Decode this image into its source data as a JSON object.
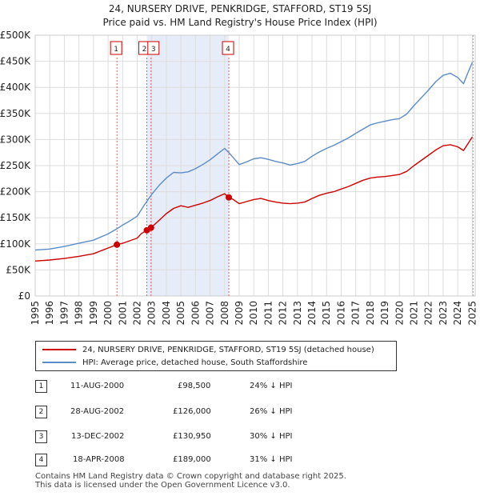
{
  "chart_data": {
    "type": "line",
    "title": "24, NURSERY DRIVE, PENKRIDGE, STAFFORD, ST19 5SJ",
    "subtitle": "Price paid vs. HM Land Registry's House Price Index (HPI)",
    "xlim": [
      1995,
      2025.2
    ],
    "ylim": [
      0,
      500000
    ],
    "x_ticks": [
      "1995",
      "1996",
      "1997",
      "1998",
      "1999",
      "2000",
      "2001",
      "2002",
      "2003",
      "2004",
      "2005",
      "2006",
      "2007",
      "2008",
      "2009",
      "2010",
      "2011",
      "2012",
      "2013",
      "2014",
      "2015",
      "2016",
      "2017",
      "2018",
      "2019",
      "2020",
      "2021",
      "2022",
      "2023",
      "2024",
      "2025"
    ],
    "y_ticks": [
      {
        "value": 0,
        "label": "£0"
      },
      {
        "value": 50000,
        "label": "£50K"
      },
      {
        "value": 100000,
        "label": "£100K"
      },
      {
        "value": 150000,
        "label": "£150K"
      },
      {
        "value": 200000,
        "label": "£200K"
      },
      {
        "value": 250000,
        "label": "£250K"
      },
      {
        "value": 300000,
        "label": "£300K"
      },
      {
        "value": 350000,
        "label": "£350K"
      },
      {
        "value": 400000,
        "label": "£400K"
      },
      {
        "value": 450000,
        "label": "£450K"
      },
      {
        "value": 500000,
        "label": "£500K"
      }
    ],
    "shaded_region": [
      2002.66,
      2008.29
    ],
    "series": [
      {
        "name": "24, NURSERY DRIVE, PENKRIDGE, STAFFORD, ST19 5SJ (detached house)",
        "color": "#cc0000",
        "points": [
          [
            1995.0,
            67000
          ],
          [
            1996.0,
            69000
          ],
          [
            1997.0,
            72000
          ],
          [
            1998.0,
            76000
          ],
          [
            1999.0,
            81000
          ],
          [
            2000.0,
            92000
          ],
          [
            2000.61,
            98500
          ],
          [
            2001.0,
            101000
          ],
          [
            2001.5,
            106000
          ],
          [
            2002.0,
            111000
          ],
          [
            2002.3,
            120000
          ],
          [
            2002.66,
            126000
          ],
          [
            2002.95,
            130950
          ],
          [
            2003.5,
            145000
          ],
          [
            2004.0,
            158000
          ],
          [
            2004.5,
            168000
          ],
          [
            2005.0,
            173000
          ],
          [
            2005.5,
            170000
          ],
          [
            2006.0,
            174000
          ],
          [
            2006.5,
            178000
          ],
          [
            2007.0,
            183000
          ],
          [
            2007.5,
            190000
          ],
          [
            2008.0,
            196000
          ],
          [
            2008.29,
            189000
          ],
          [
            2008.6,
            185000
          ],
          [
            2009.0,
            177000
          ],
          [
            2009.5,
            181000
          ],
          [
            2010.0,
            185000
          ],
          [
            2010.5,
            187000
          ],
          [
            2011.0,
            183000
          ],
          [
            2011.5,
            180000
          ],
          [
            2012.0,
            178000
          ],
          [
            2012.5,
            177000
          ],
          [
            2013.0,
            178000
          ],
          [
            2013.5,
            180000
          ],
          [
            2014.0,
            187000
          ],
          [
            2014.5,
            193000
          ],
          [
            2015.0,
            197000
          ],
          [
            2015.5,
            200000
          ],
          [
            2016.0,
            205000
          ],
          [
            2016.5,
            210000
          ],
          [
            2017.0,
            216000
          ],
          [
            2017.5,
            222000
          ],
          [
            2018.0,
            226000
          ],
          [
            2018.5,
            228000
          ],
          [
            2019.0,
            229000
          ],
          [
            2019.5,
            231000
          ],
          [
            2020.0,
            233000
          ],
          [
            2020.5,
            239000
          ],
          [
            2021.0,
            250000
          ],
          [
            2021.5,
            260000
          ],
          [
            2022.0,
            270000
          ],
          [
            2022.5,
            280000
          ],
          [
            2023.0,
            288000
          ],
          [
            2023.5,
            290000
          ],
          [
            2024.0,
            286000
          ],
          [
            2024.4,
            279000
          ],
          [
            2024.7,
            292000
          ],
          [
            2025.0,
            305000
          ]
        ]
      },
      {
        "name": "HPI: Average price, detached house, South Staffordshire",
        "color": "#5b8cc8",
        "points": [
          [
            1995.0,
            88000
          ],
          [
            1996.0,
            90000
          ],
          [
            1997.0,
            95000
          ],
          [
            1998.0,
            101000
          ],
          [
            1999.0,
            107000
          ],
          [
            2000.0,
            119000
          ],
          [
            2000.61,
            129000
          ],
          [
            2001.0,
            136000
          ],
          [
            2001.5,
            144000
          ],
          [
            2002.0,
            153000
          ],
          [
            2002.5,
            175000
          ],
          [
            2003.0,
            195000
          ],
          [
            2003.5,
            212000
          ],
          [
            2004.0,
            226000
          ],
          [
            2004.5,
            237000
          ],
          [
            2005.0,
            236000
          ],
          [
            2005.5,
            238000
          ],
          [
            2006.0,
            244000
          ],
          [
            2006.5,
            252000
          ],
          [
            2007.0,
            261000
          ],
          [
            2007.5,
            272000
          ],
          [
            2008.0,
            283000
          ],
          [
            2008.29,
            275000
          ],
          [
            2008.6,
            265000
          ],
          [
            2009.0,
            252000
          ],
          [
            2009.5,
            257000
          ],
          [
            2010.0,
            263000
          ],
          [
            2010.5,
            265000
          ],
          [
            2011.0,
            262000
          ],
          [
            2011.5,
            258000
          ],
          [
            2012.0,
            255000
          ],
          [
            2012.5,
            251000
          ],
          [
            2013.0,
            254000
          ],
          [
            2013.5,
            258000
          ],
          [
            2014.0,
            268000
          ],
          [
            2014.5,
            276000
          ],
          [
            2015.0,
            283000
          ],
          [
            2015.5,
            289000
          ],
          [
            2016.0,
            296000
          ],
          [
            2016.5,
            303000
          ],
          [
            2017.0,
            312000
          ],
          [
            2017.5,
            320000
          ],
          [
            2018.0,
            328000
          ],
          [
            2018.5,
            332000
          ],
          [
            2019.0,
            335000
          ],
          [
            2019.5,
            338000
          ],
          [
            2020.0,
            340000
          ],
          [
            2020.5,
            349000
          ],
          [
            2021.0,
            365000
          ],
          [
            2021.5,
            380000
          ],
          [
            2022.0,
            395000
          ],
          [
            2022.5,
            411000
          ],
          [
            2023.0,
            423000
          ],
          [
            2023.5,
            427000
          ],
          [
            2024.0,
            419000
          ],
          [
            2024.4,
            407000
          ],
          [
            2024.7,
            428000
          ],
          [
            2025.0,
            448000
          ]
        ]
      }
    ],
    "markers": [
      {
        "id": "1",
        "x": 2000.61,
        "value": 98500
      },
      {
        "id": "2",
        "x": 2002.66,
        "value": 126000
      },
      {
        "id": "3",
        "x": 2002.95,
        "value": 130950
      },
      {
        "id": "4",
        "x": 2008.29,
        "value": 189000
      }
    ]
  },
  "legend": {
    "property": "24, NURSERY DRIVE, PENKRIDGE, STAFFORD, ST19 5SJ (detached house)",
    "hpi": "HPI: Average price, detached house, South Staffordshire"
  },
  "sales": [
    {
      "num": "1",
      "date": "11-AUG-2000",
      "price": "£98,500",
      "hpi": "24% ↓ HPI"
    },
    {
      "num": "2",
      "date": "28-AUG-2002",
      "price": "£126,000",
      "hpi": "26% ↓ HPI"
    },
    {
      "num": "3",
      "date": "13-DEC-2002",
      "price": "£130,950",
      "hpi": "30% ↓ HPI"
    },
    {
      "num": "4",
      "date": "18-APR-2008",
      "price": "£189,000",
      "hpi": "31% ↓ HPI"
    }
  ],
  "footer": {
    "line1": "Contains HM Land Registry data © Crown copyright and database right 2025.",
    "line2": "This data is licensed under the Open Government Licence v3.0."
  },
  "colors": {
    "property": "#cc0000",
    "hpi": "#5b8cc8",
    "shade": "#e6ecf8",
    "grid": "#dddddd"
  }
}
